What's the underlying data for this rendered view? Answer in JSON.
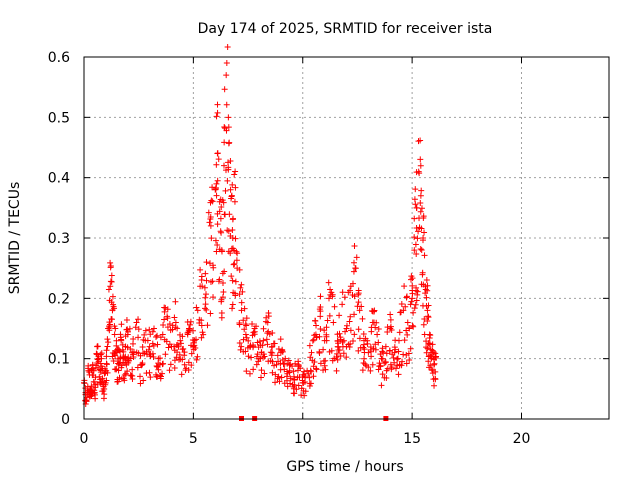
{
  "chart_data": {
    "type": "scatter",
    "title": "Day 174 of 2025, SRMTID for receiver ista",
    "xlabel": "GPS time / hours",
    "ylabel": "SRMTID / TECUs",
    "xlim": [
      0,
      24
    ],
    "ylim": [
      0,
      0.6
    ],
    "xticks": [
      0,
      5,
      10,
      15,
      20
    ],
    "xtick_labels": [
      "0",
      "5",
      "10",
      "15",
      "20"
    ],
    "yticks": [
      0,
      0.1,
      0.2,
      0.3,
      0.4,
      0.5,
      0.6
    ],
    "ytick_labels": [
      "0",
      "0.1",
      "0.2",
      "0.3",
      "0.4",
      "0.5",
      "0.6"
    ],
    "grid": true,
    "marker": "+",
    "color": "#ff0000",
    "series": [
      {
        "name": "SRMTID",
        "x": [
          0.0,
          0.1,
          0.2,
          0.3,
          0.4,
          0.5,
          0.6,
          0.7,
          0.8,
          0.9,
          1.0,
          1.1,
          1.2,
          1.3,
          1.4,
          1.5,
          1.6,
          1.7,
          1.8,
          1.9,
          2.0,
          2.2,
          2.4,
          2.6,
          2.8,
          3.0,
          3.2,
          3.4,
          3.6,
          3.8,
          4.0,
          4.2,
          4.4,
          4.6,
          4.8,
          5.0,
          5.2,
          5.4,
          5.6,
          5.8,
          6.0,
          6.1,
          6.2,
          6.3,
          6.4,
          6.5,
          6.6,
          6.7,
          6.8,
          6.9,
          7.0,
          7.2,
          7.4,
          7.6,
          7.8,
          8.0,
          8.2,
          8.4,
          8.6,
          8.8,
          9.0,
          9.2,
          9.4,
          9.6,
          9.8,
          10.0,
          10.2,
          10.4,
          10.6,
          10.8,
          11.0,
          11.2,
          11.4,
          11.6,
          11.8,
          12.0,
          12.2,
          12.4,
          12.6,
          12.8,
          13.0,
          13.2,
          13.4,
          13.6,
          13.8,
          14.0,
          14.2,
          14.4,
          14.6,
          14.8,
          15.0,
          15.1,
          15.2,
          15.3,
          15.4,
          15.5,
          15.6,
          15.7,
          15.8,
          15.9,
          16.0
        ],
        "y": [
          0.06,
          0.03,
          0.08,
          0.05,
          0.09,
          0.04,
          0.12,
          0.07,
          0.1,
          0.05,
          0.08,
          0.15,
          0.22,
          0.18,
          0.14,
          0.11,
          0.09,
          0.13,
          0.1,
          0.12,
          0.14,
          0.11,
          0.16,
          0.09,
          0.13,
          0.12,
          0.15,
          0.1,
          0.14,
          0.17,
          0.12,
          0.16,
          0.13,
          0.09,
          0.15,
          0.12,
          0.18,
          0.22,
          0.26,
          0.32,
          0.38,
          0.44,
          0.36,
          0.28,
          0.42,
          0.57,
          0.5,
          0.38,
          0.3,
          0.36,
          0.25,
          0.18,
          0.14,
          0.12,
          0.15,
          0.1,
          0.13,
          0.16,
          0.12,
          0.09,
          0.11,
          0.1,
          0.08,
          0.07,
          0.09,
          0.06,
          0.08,
          0.11,
          0.14,
          0.17,
          0.13,
          0.2,
          0.16,
          0.12,
          0.19,
          0.15,
          0.22,
          0.25,
          0.18,
          0.13,
          0.11,
          0.16,
          0.14,
          0.1,
          0.12,
          0.15,
          0.11,
          0.13,
          0.18,
          0.16,
          0.2,
          0.28,
          0.35,
          0.41,
          0.37,
          0.3,
          0.22,
          0.18,
          0.14,
          0.11,
          0.09
        ]
      }
    ],
    "gap_markers_x": [
      7.2,
      7.8,
      13.8
    ]
  }
}
